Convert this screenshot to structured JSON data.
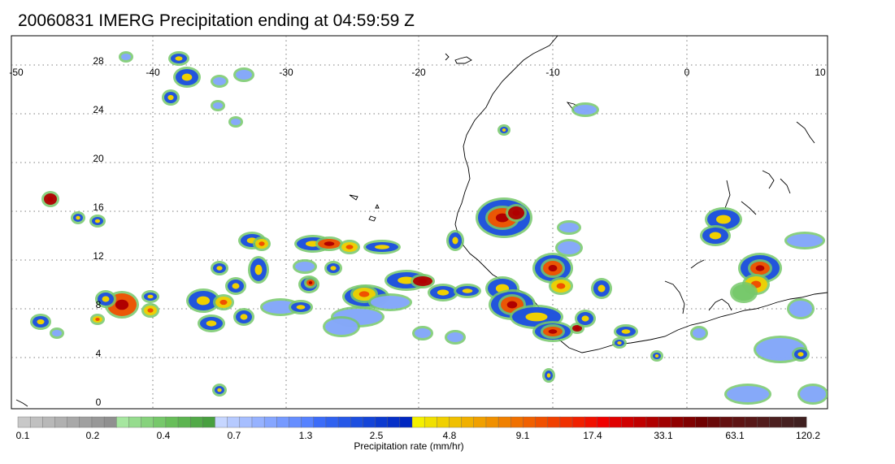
{
  "title": "20060831 IMERG Precipitation ending at 04:59:59 Z",
  "map": {
    "lon_labels": [
      "-50",
      "-40",
      "-30",
      "-20",
      "-10",
      "0",
      "10"
    ],
    "lat_labels": [
      "28",
      "24",
      "20",
      "16",
      "12",
      "8",
      "4",
      "0"
    ],
    "lon_range": [
      -50,
      10
    ],
    "lat_range": [
      -0.5,
      30
    ],
    "grid": "dotted"
  },
  "colorbar": {
    "title": "Precipitation rate (mm/hr)",
    "tick_labels": [
      "0.1",
      "0.2",
      "0.4",
      "0.7",
      "1.3",
      "2.5",
      "4.8",
      "9.1",
      "17.4",
      "33.1",
      "63.1",
      "120.2"
    ],
    "colors": [
      "#c8c8c8",
      "#c0c0c0",
      "#b8b8b8",
      "#b0b0b0",
      "#a8a8a8",
      "#a0a0a0",
      "#989898",
      "#909090",
      "#a6e6a0",
      "#96dc8e",
      "#86d27c",
      "#76c86a",
      "#68be5a",
      "#5cb450",
      "#52aa48",
      "#48a040",
      "#c6d6ff",
      "#b6caff",
      "#a6beff",
      "#96b2ff",
      "#86a6ff",
      "#769aff",
      "#668eff",
      "#5682ff",
      "#3c6cf8",
      "#3062f0",
      "#2658e8",
      "#1c4ee0",
      "#1444d8",
      "#0c3ad0",
      "#0630c8",
      "#0026c0",
      "#f4f000",
      "#f0e000",
      "#f0d000",
      "#f0c000",
      "#f0b000",
      "#f0a000",
      "#f09000",
      "#f08000",
      "#f07000",
      "#f06000",
      "#f05000",
      "#f04000",
      "#f03000",
      "#f02000",
      "#f01000",
      "#f00000",
      "#e00000",
      "#d00000",
      "#c00000",
      "#b00000",
      "#a00000",
      "#900000",
      "#800000",
      "#700000",
      "#6a0a0a",
      "#641010",
      "#5e1414",
      "#581818",
      "#521c1c",
      "#4c2020",
      "#462020",
      "#402020"
    ]
  }
}
